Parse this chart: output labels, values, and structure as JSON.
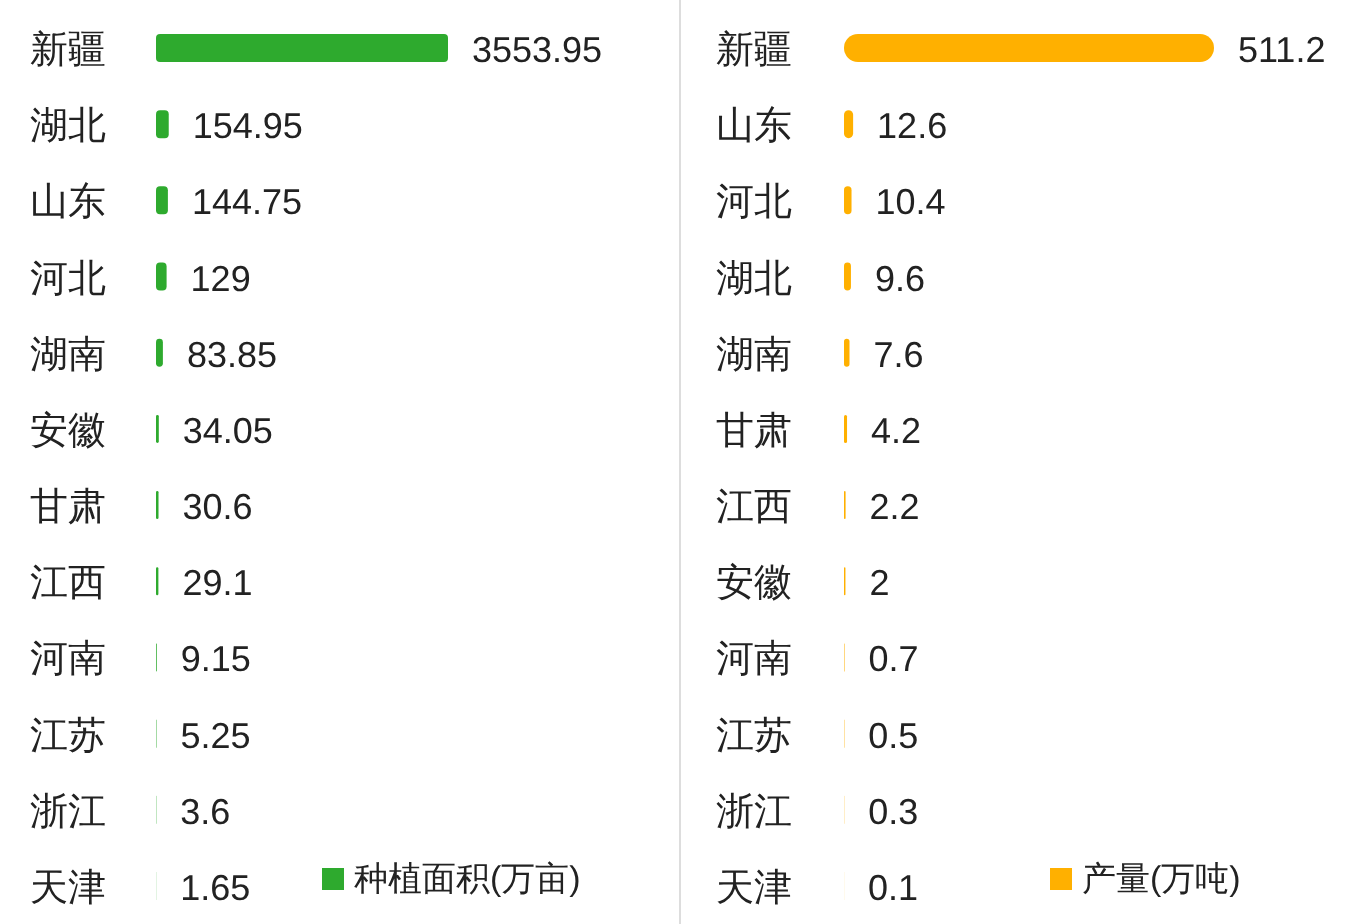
{
  "chart_data": [
    {
      "type": "bar",
      "orientation": "horizontal",
      "data_labels": true,
      "legend": "bottom right",
      "categories": [
        "新疆",
        "湖北",
        "山东",
        "河北",
        "湖南",
        "安徽",
        "甘肃",
        "江西",
        "河南",
        "江苏",
        "浙江",
        "天津"
      ],
      "series": [
        {
          "name": "种植面积(万亩)",
          "color": "#2eaa2e",
          "values": [
            3553.95,
            154.95,
            144.75,
            129,
            83.85,
            34.05,
            30.6,
            29.1,
            9.15,
            5.25,
            3.6,
            1.65
          ]
        }
      ]
    },
    {
      "type": "bar",
      "orientation": "horizontal",
      "data_labels": true,
      "legend": "bottom right",
      "categories": [
        "新疆",
        "山东",
        "河北",
        "湖北",
        "湖南",
        "甘肃",
        "江西",
        "安徽",
        "河南",
        "江苏",
        "浙江",
        "天津"
      ],
      "series": [
        {
          "name": "产量(万吨)",
          "color": "#ffb000",
          "values": [
            511.2,
            12.6,
            10.4,
            9.6,
            7.6,
            4.2,
            2.2,
            2,
            0.7,
            0.5,
            0.3,
            0.1
          ]
        }
      ]
    }
  ]
}
